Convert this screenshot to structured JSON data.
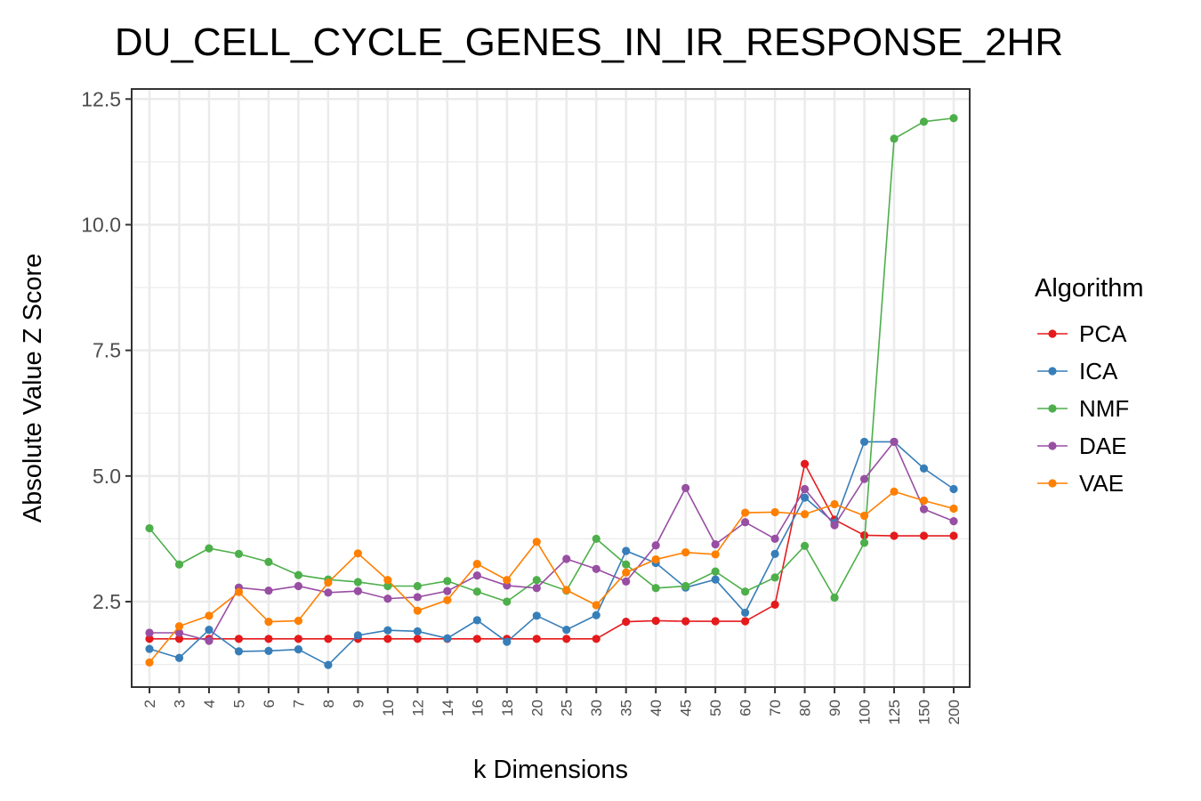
{
  "chart_data": {
    "type": "line",
    "title": "DU_CELL_CYCLE_GENES_IN_IR_RESPONSE_2HR",
    "xlabel": "k Dimensions",
    "ylabel": "Absolute Value Z Score",
    "categories": [
      "2",
      "3",
      "4",
      "5",
      "6",
      "7",
      "8",
      "9",
      "10",
      "12",
      "14",
      "16",
      "18",
      "20",
      "25",
      "30",
      "35",
      "40",
      "45",
      "50",
      "60",
      "70",
      "80",
      "90",
      "100",
      "125",
      "150",
      "200"
    ],
    "ylim": [
      0.8,
      12.7
    ],
    "yticks": [
      2.5,
      5.0,
      7.5,
      10.0,
      12.5
    ],
    "ytick_labels": [
      "2.5",
      "5.0",
      "7.5",
      "10.0",
      "12.5"
    ],
    "grid": true,
    "legend_position": "right",
    "legend_title": "Algorithm",
    "series": [
      {
        "name": "PCA",
        "color": "#e41a1c",
        "values": [
          1.76,
          1.76,
          1.76,
          1.76,
          1.76,
          1.76,
          1.76,
          1.76,
          1.76,
          1.76,
          1.76,
          1.76,
          1.76,
          1.76,
          1.76,
          1.76,
          2.1,
          2.12,
          2.11,
          2.11,
          2.11,
          2.44,
          5.24,
          4.13,
          3.82,
          3.81,
          3.81,
          3.81
        ]
      },
      {
        "name": "ICA",
        "color": "#377eb8",
        "values": [
          1.56,
          1.38,
          1.94,
          1.51,
          1.52,
          1.55,
          1.24,
          1.83,
          1.93,
          1.91,
          1.77,
          2.13,
          1.7,
          2.22,
          1.94,
          2.23,
          3.51,
          3.27,
          2.78,
          2.94,
          2.28,
          3.45,
          4.57,
          4.07,
          5.68,
          5.68,
          5.15,
          4.74
        ]
      },
      {
        "name": "NMF",
        "color": "#4daf4a",
        "values": [
          3.96,
          3.24,
          3.56,
          3.45,
          3.29,
          3.03,
          2.94,
          2.89,
          2.81,
          2.81,
          2.91,
          2.7,
          2.5,
          2.93,
          2.72,
          3.75,
          3.24,
          2.77,
          2.81,
          3.1,
          2.7,
          2.98,
          3.61,
          2.58,
          3.67,
          11.71,
          12.05,
          12.12
        ]
      },
      {
        "name": "DAE",
        "color": "#984ea3",
        "values": [
          1.88,
          1.88,
          1.72,
          2.78,
          2.72,
          2.81,
          2.68,
          2.71,
          2.56,
          2.59,
          2.71,
          3.02,
          2.82,
          2.77,
          3.35,
          3.15,
          2.9,
          3.62,
          4.76,
          3.64,
          4.08,
          3.75,
          4.74,
          4.02,
          4.94,
          5.68,
          4.34,
          4.1
        ]
      },
      {
        "name": "VAE",
        "color": "#ff7f00",
        "values": [
          1.29,
          2.01,
          2.22,
          2.69,
          2.1,
          2.12,
          2.88,
          3.46,
          2.93,
          2.32,
          2.53,
          3.25,
          2.93,
          3.69,
          2.73,
          2.43,
          3.08,
          3.34,
          3.48,
          3.44,
          4.27,
          4.28,
          4.24,
          4.44,
          4.21,
          4.69,
          4.51,
          4.35
        ]
      }
    ]
  }
}
